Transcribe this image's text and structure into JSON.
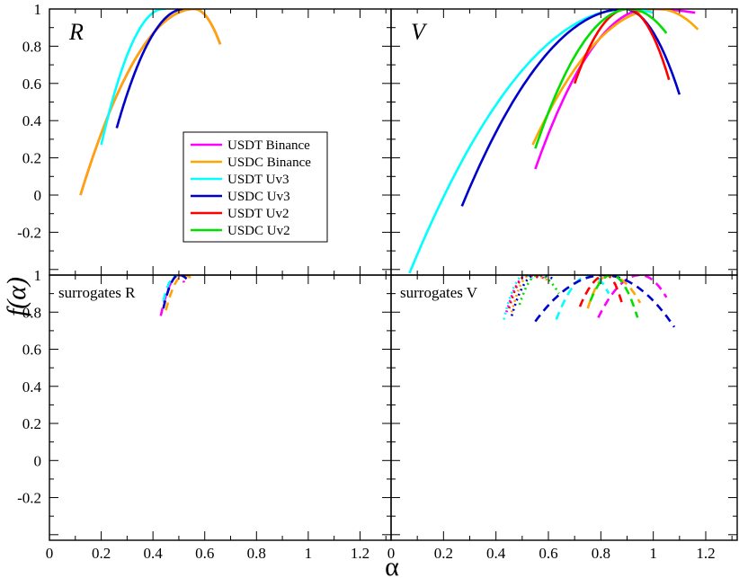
{
  "chart_data": {
    "type": "line",
    "xlabel": "α",
    "ylabel": "f(α)",
    "xlim": [
      0,
      1.32
    ],
    "ylim": [
      -0.43,
      1.0
    ],
    "x_ticks": [
      "0",
      "0.2",
      "0.4",
      "0.6",
      "0.8",
      "1",
      "1.2"
    ],
    "y_ticks": [
      "1",
      "0.8",
      "0.6",
      "0.4",
      "0.2",
      "0",
      "-0.2"
    ],
    "colors": {
      "USDT Binance": "#ff00ff",
      "USDC Binance": "#ffa500",
      "USDT Uv3": "#00ffff",
      "USDC Uv3": "#0000cd",
      "USDT Uv2": "#ff0000",
      "USDC Uv2": "#00e000"
    },
    "legend": {
      "placement": "inside top-left panel, center-right",
      "entries": [
        "USDT Binance",
        "USDC Binance",
        "USDT Uv3",
        "USDC Uv3",
        "USDT Uv2",
        "USDC Uv2"
      ]
    },
    "panels": [
      {
        "id": "R",
        "label": "R",
        "series": [
          {
            "name": "USDT Binance",
            "style": "solid",
            "peak": 0.56,
            "ends": [
              [
                0.12,
                0.0
              ],
              [
                0.66,
                0.81
              ]
            ]
          },
          {
            "name": "USDC Binance",
            "style": "solid",
            "peak": 0.56,
            "ends": [
              [
                0.12,
                0.0
              ],
              [
                0.66,
                0.81
              ]
            ]
          },
          {
            "name": "USDT Uv3",
            "style": "solid",
            "peak": 0.44,
            "ends": [
              [
                0.2,
                0.27
              ],
              [
                0.45,
                1.0
              ]
            ]
          },
          {
            "name": "USDC Uv3",
            "style": "solid",
            "peak": 0.52,
            "ends": [
              [
                0.26,
                0.36
              ],
              [
                0.52,
                1.0
              ]
            ]
          }
        ]
      },
      {
        "id": "V",
        "label": "V",
        "series": [
          {
            "name": "USDT Binance",
            "style": "solid",
            "peak": 0.98,
            "ends": [
              [
                0.55,
                0.14
              ],
              [
                1.16,
                0.98
              ]
            ]
          },
          {
            "name": "USDC Binance",
            "style": "solid",
            "peak": 1.02,
            "ends": [
              [
                0.54,
                0.27
              ],
              [
                1.17,
                0.89
              ]
            ]
          },
          {
            "name": "USDT Uv3",
            "style": "solid",
            "peak": 0.9,
            "ends": [
              [
                0.07,
                -0.42
              ],
              [
                1.0,
                0.98
              ]
            ]
          },
          {
            "name": "USDC Uv3",
            "style": "solid",
            "peak": 0.89,
            "ends": [
              [
                0.27,
                -0.06
              ],
              [
                1.1,
                0.54
              ]
            ]
          },
          {
            "name": "USDT Uv2",
            "style": "solid",
            "peak": 0.9,
            "ends": [
              [
                0.7,
                0.6
              ],
              [
                1.06,
                0.62
              ]
            ]
          },
          {
            "name": "USDC Uv2",
            "style": "solid",
            "peak": 0.91,
            "ends": [
              [
                0.55,
                0.25
              ],
              [
                1.05,
                0.87
              ]
            ]
          }
        ]
      },
      {
        "id": "surrogates-R",
        "label": "surrogates R",
        "series": [
          {
            "name": "USDT Binance",
            "style": "dash",
            "peak": 0.5,
            "ends": [
              [
                0.43,
                0.78
              ],
              [
                0.52,
                0.96
              ]
            ]
          },
          {
            "name": "USDC Binance",
            "style": "dash",
            "peak": 0.52,
            "ends": [
              [
                0.45,
                0.81
              ],
              [
                0.55,
                0.98
              ]
            ]
          },
          {
            "name": "USDT Uv3",
            "style": "dash",
            "peak": 0.49,
            "ends": [
              [
                0.44,
                0.86
              ],
              [
                0.5,
                1.0
              ]
            ]
          },
          {
            "name": "USDC Uv3",
            "style": "dash",
            "peak": 0.5,
            "ends": [
              [
                0.44,
                0.82
              ],
              [
                0.53,
                0.98
              ]
            ]
          }
        ]
      },
      {
        "id": "surrogates-V",
        "label": "surrogates V",
        "series": [
          {
            "name": "USDT Binance",
            "style": "dot",
            "peak": 0.52,
            "ends": [
              [
                0.44,
                0.8
              ],
              [
                0.59,
                0.98
              ]
            ]
          },
          {
            "name": "USDC Binance",
            "style": "dot",
            "peak": 0.53,
            "ends": [
              [
                0.46,
                0.8
              ],
              [
                0.6,
                0.97
              ]
            ]
          },
          {
            "name": "USDT Uv3",
            "style": "dot",
            "peak": 0.51,
            "ends": [
              [
                0.43,
                0.76
              ],
              [
                0.54,
                0.98
              ]
            ]
          },
          {
            "name": "USDC Uv3",
            "style": "dot",
            "peak": 0.55,
            "ends": [
              [
                0.46,
                0.78
              ],
              [
                0.62,
                0.98
              ]
            ]
          },
          {
            "name": "USDT Uv2",
            "style": "dot",
            "peak": 0.52,
            "ends": [
              [
                0.45,
                0.82
              ],
              [
                0.57,
                0.98
              ]
            ]
          },
          {
            "name": "USDC Uv2",
            "style": "dot",
            "peak": 0.56,
            "ends": [
              [
                0.49,
                0.84
              ],
              [
                0.64,
                0.9
              ]
            ]
          },
          {
            "name": "USDT Binance",
            "style": "dash",
            "peak": 0.95,
            "ends": [
              [
                0.79,
                0.77
              ],
              [
                1.05,
                0.88
              ]
            ]
          },
          {
            "name": "USDC Binance",
            "style": "dash",
            "peak": 0.83,
            "ends": [
              [
                0.75,
                0.82
              ],
              [
                0.95,
                0.85
              ]
            ]
          },
          {
            "name": "USDT Uv3",
            "style": "dash",
            "peak": 0.76,
            "ends": [
              [
                0.63,
                0.76
              ],
              [
                0.83,
                0.9
              ]
            ]
          },
          {
            "name": "USDC Uv3",
            "style": "dash",
            "peak": 0.81,
            "ends": [
              [
                0.55,
                0.75
              ],
              [
                1.08,
                0.72
              ]
            ]
          },
          {
            "name": "USDT Uv2",
            "style": "dash",
            "peak": 0.82,
            "ends": [
              [
                0.72,
                0.83
              ],
              [
                0.88,
                0.85
              ]
            ]
          },
          {
            "name": "USDC Uv2",
            "style": "dash",
            "peak": 0.84,
            "ends": [
              [
                0.76,
                0.86
              ],
              [
                0.94,
                0.77
              ]
            ]
          }
        ]
      }
    ]
  }
}
